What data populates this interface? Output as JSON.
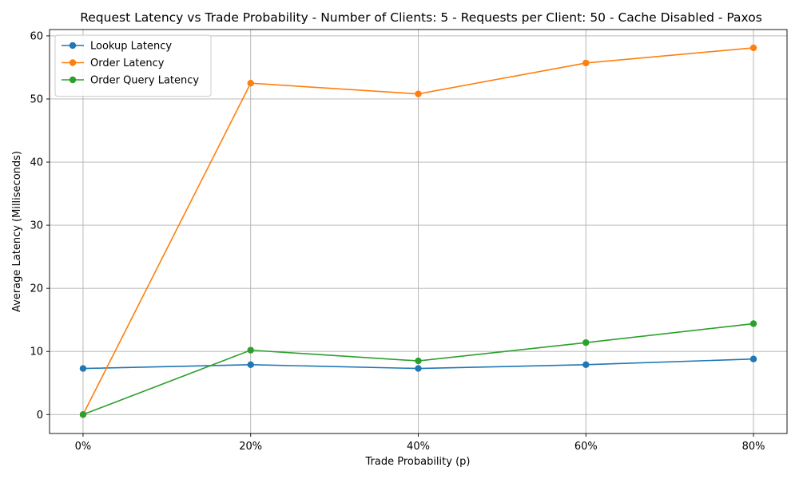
{
  "chart_data": {
    "type": "line",
    "title": "Request Latency vs Trade Probability - Number of Clients: 5 - Requests per Client: 50 - Cache Disabled - Paxos",
    "xlabel": "Trade Probability (p)",
    "ylabel": "Average Latency (Milliseconds)",
    "categories": [
      "0%",
      "20%",
      "40%",
      "60%",
      "80%"
    ],
    "x": [
      0,
      20,
      40,
      60,
      80
    ],
    "xlim": [
      -4,
      84
    ],
    "ylim": [
      -3,
      61
    ],
    "yticks": [
      0,
      10,
      20,
      30,
      40,
      50,
      60
    ],
    "grid": true,
    "legend_position": "top-left",
    "series": [
      {
        "name": "Lookup Latency",
        "color": "#1f77b4",
        "values": [
          7.3,
          7.9,
          7.3,
          7.9,
          8.8
        ]
      },
      {
        "name": "Order Latency",
        "color": "#ff7f0e",
        "values": [
          0.0,
          52.5,
          50.8,
          55.7,
          58.1
        ]
      },
      {
        "name": "Order Query Latency",
        "color": "#2ca02c",
        "values": [
          0.0,
          10.2,
          8.5,
          11.4,
          14.4
        ]
      }
    ]
  }
}
